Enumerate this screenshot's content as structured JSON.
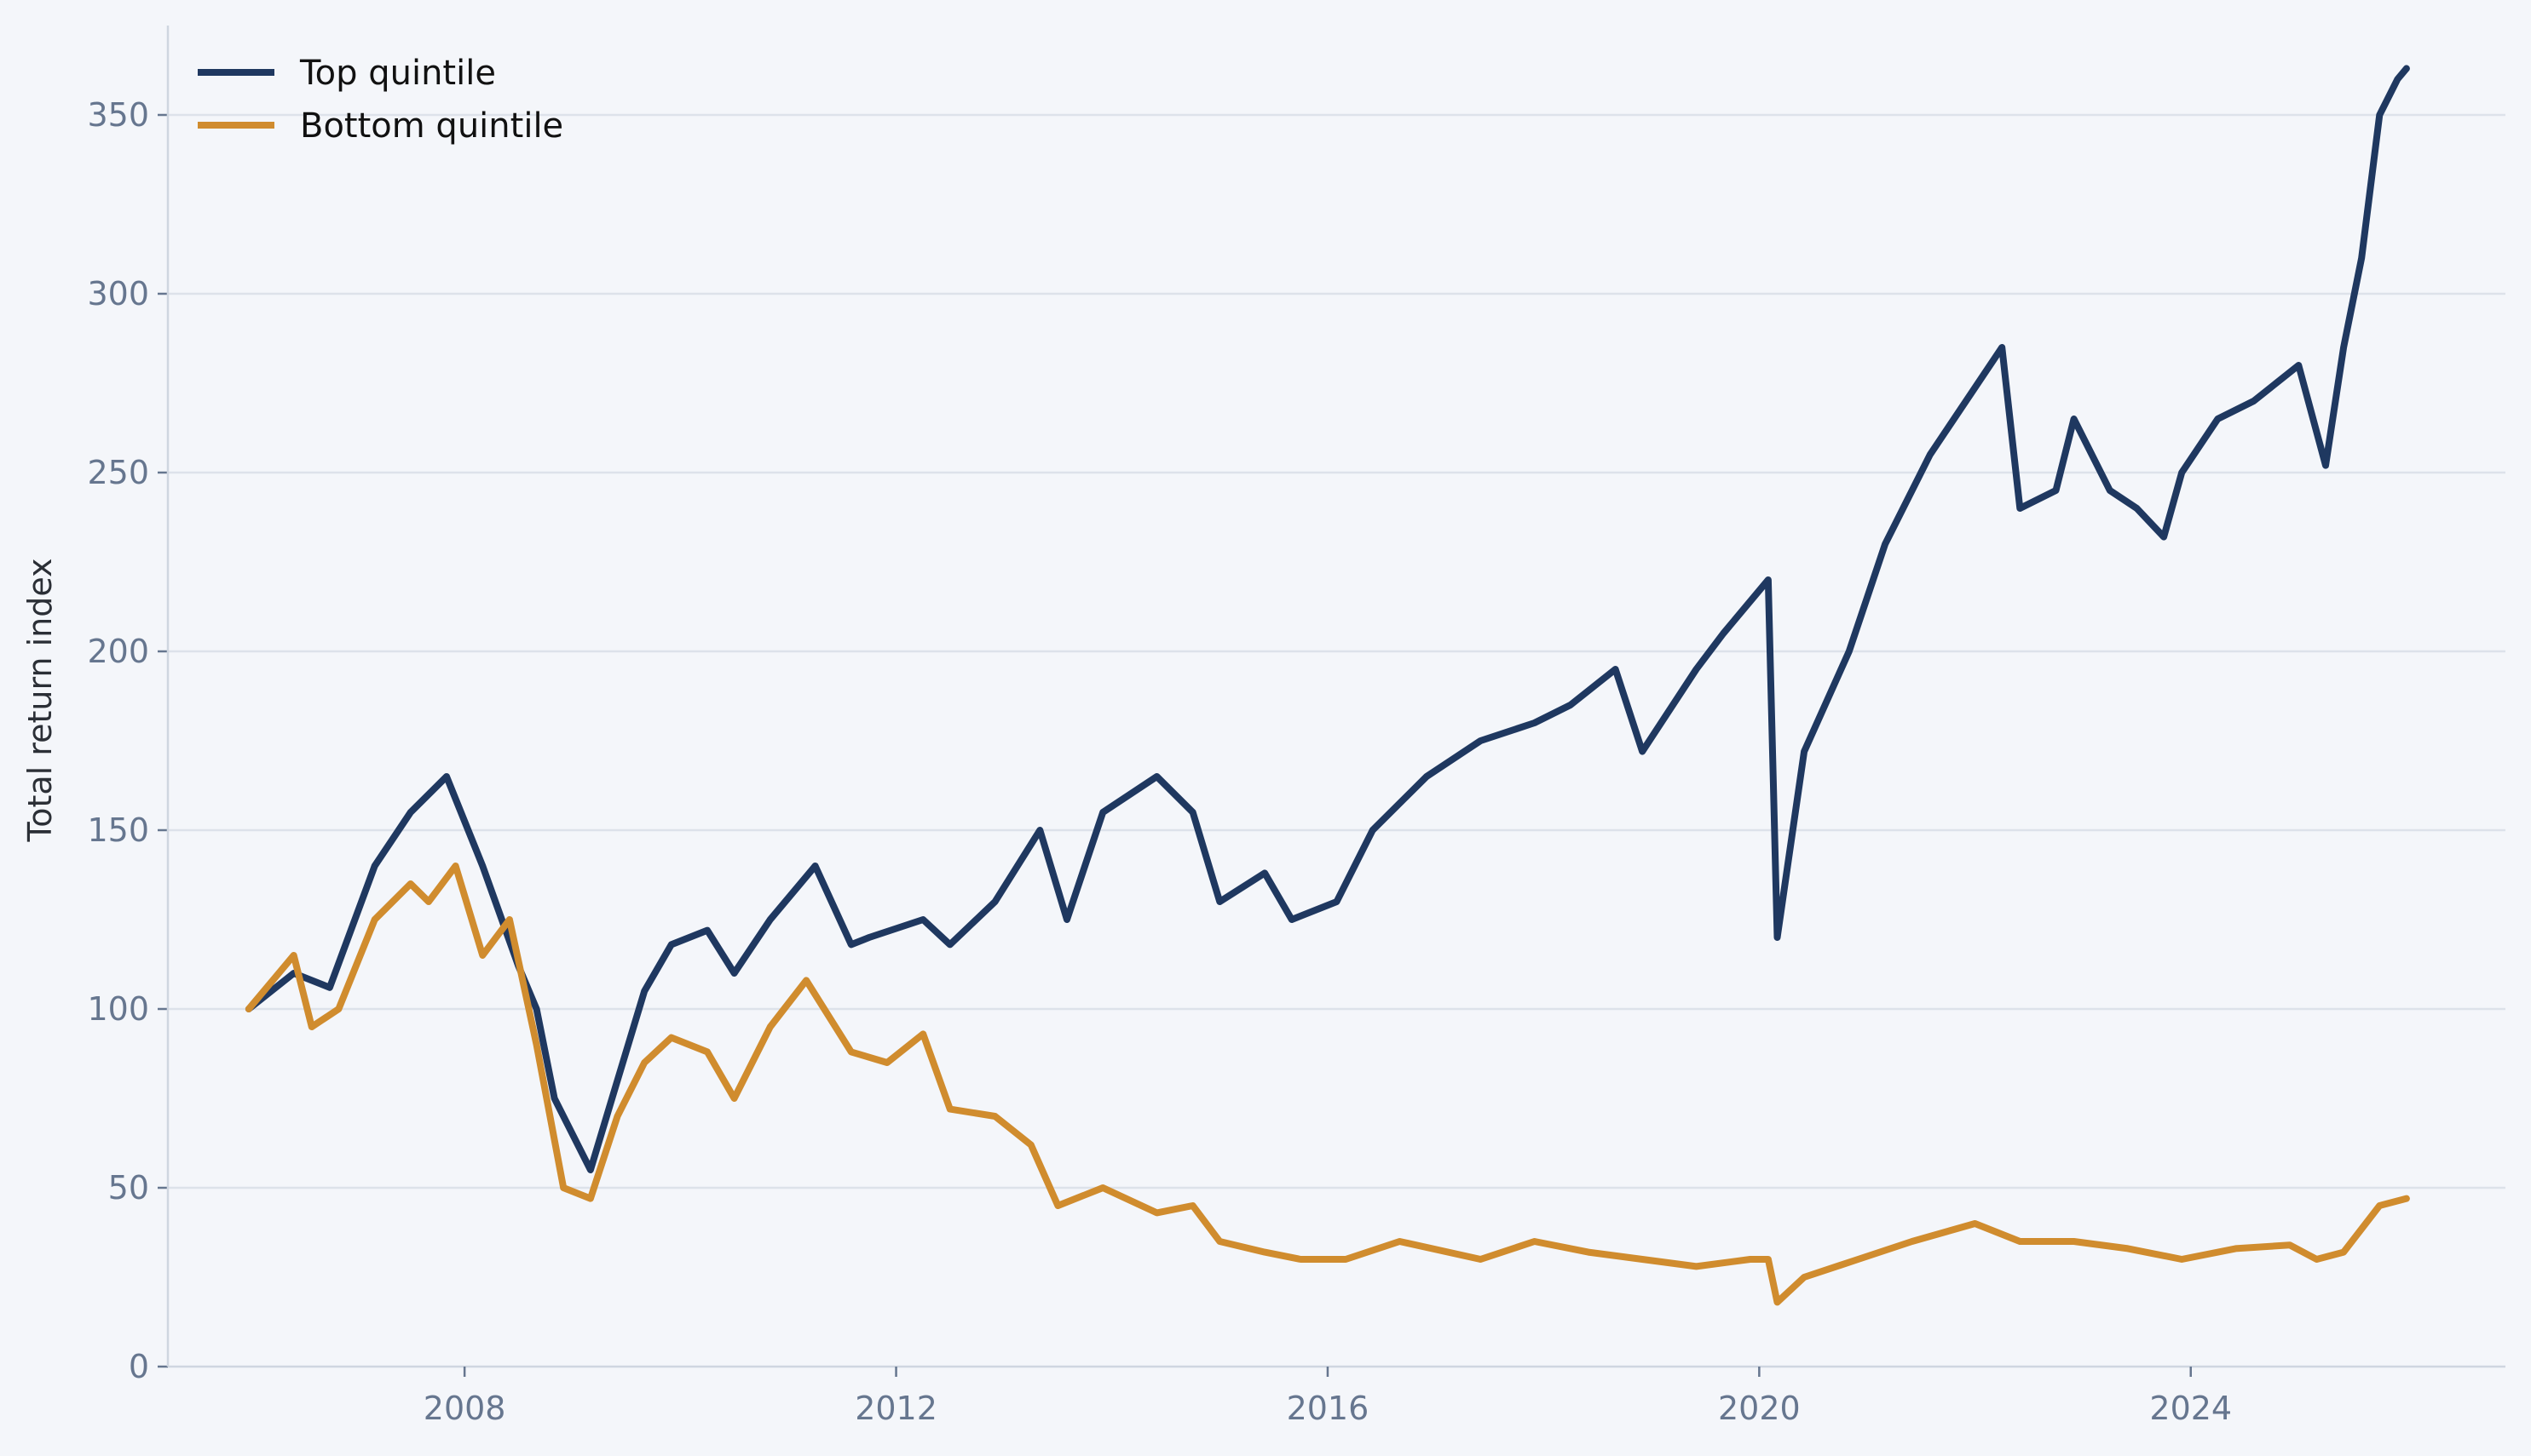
{
  "chart_data": {
    "type": "line",
    "title": "",
    "xlabel": "",
    "ylabel": "Total return index",
    "xlim": [
      "2005-04",
      "2026-12"
    ],
    "ylim": [
      0,
      375
    ],
    "x_ticks": [
      "2008",
      "2012",
      "2016",
      "2020",
      "2024"
    ],
    "y_ticks": [
      0,
      50,
      100,
      150,
      200,
      250,
      300,
      350
    ],
    "grid": "horizontal",
    "legend": {
      "position": "top-left"
    },
    "series": [
      {
        "name": "Top quintile",
        "color": "#1f3860",
        "points": [
          [
            "2006-01",
            100
          ],
          [
            "2006-06",
            110
          ],
          [
            "2006-10",
            106
          ],
          [
            "2007-03",
            140
          ],
          [
            "2007-07",
            155
          ],
          [
            "2007-11",
            165
          ],
          [
            "2008-03",
            140
          ],
          [
            "2008-07",
            112
          ],
          [
            "2008-09",
            100
          ],
          [
            "2008-11",
            75
          ],
          [
            "2009-03",
            55
          ],
          [
            "2009-06",
            80
          ],
          [
            "2009-09",
            105
          ],
          [
            "2009-12",
            118
          ],
          [
            "2010-04",
            122
          ],
          [
            "2010-07",
            110
          ],
          [
            "2010-11",
            125
          ],
          [
            "2011-04",
            140
          ],
          [
            "2011-08",
            118
          ],
          [
            "2011-10",
            120
          ],
          [
            "2012-04",
            125
          ],
          [
            "2012-07",
            118
          ],
          [
            "2012-12",
            130
          ],
          [
            "2013-05",
            150
          ],
          [
            "2013-08",
            125
          ],
          [
            "2013-12",
            155
          ],
          [
            "2014-06",
            165
          ],
          [
            "2014-10",
            155
          ],
          [
            "2015-01",
            130
          ],
          [
            "2015-06",
            138
          ],
          [
            "2015-09",
            125
          ],
          [
            "2016-02",
            130
          ],
          [
            "2016-06",
            150
          ],
          [
            "2016-12",
            165
          ],
          [
            "2017-06",
            175
          ],
          [
            "2017-12",
            180
          ],
          [
            "2018-04",
            185
          ],
          [
            "2018-09",
            195
          ],
          [
            "2018-12",
            172
          ],
          [
            "2019-06",
            195
          ],
          [
            "2019-09",
            205
          ],
          [
            "2020-02",
            220
          ],
          [
            "2020-03",
            120
          ],
          [
            "2020-06",
            172
          ],
          [
            "2020-11",
            200
          ],
          [
            "2021-03",
            230
          ],
          [
            "2021-08",
            255
          ],
          [
            "2021-12",
            270
          ],
          [
            "2022-04",
            285
          ],
          [
            "2022-06",
            240
          ],
          [
            "2022-10",
            245
          ],
          [
            "2022-12",
            265
          ],
          [
            "2023-04",
            245
          ],
          [
            "2023-07",
            240
          ],
          [
            "2023-10",
            232
          ],
          [
            "2023-12",
            250
          ],
          [
            "2024-04",
            265
          ],
          [
            "2024-08",
            270
          ],
          [
            "2025-01",
            280
          ],
          [
            "2025-04",
            252
          ],
          [
            "2025-06",
            285
          ],
          [
            "2025-08",
            310
          ],
          [
            "2025-10",
            350
          ],
          [
            "2025-12",
            360
          ],
          [
            "2026-01",
            363
          ]
        ]
      },
      {
        "name": "Bottom quintile",
        "color": "#d08c2e",
        "points": [
          [
            "2006-01",
            100
          ],
          [
            "2006-06",
            115
          ],
          [
            "2006-08",
            95
          ],
          [
            "2006-11",
            100
          ],
          [
            "2007-03",
            125
          ],
          [
            "2007-07",
            135
          ],
          [
            "2007-09",
            130
          ],
          [
            "2007-12",
            140
          ],
          [
            "2008-03",
            115
          ],
          [
            "2008-06",
            125
          ],
          [
            "2008-09",
            90
          ],
          [
            "2008-12",
            50
          ],
          [
            "2009-03",
            47
          ],
          [
            "2009-06",
            70
          ],
          [
            "2009-09",
            85
          ],
          [
            "2009-12",
            92
          ],
          [
            "2010-04",
            88
          ],
          [
            "2010-07",
            75
          ],
          [
            "2010-11",
            95
          ],
          [
            "2011-03",
            108
          ],
          [
            "2011-08",
            88
          ],
          [
            "2011-12",
            85
          ],
          [
            "2012-04",
            93
          ],
          [
            "2012-07",
            72
          ],
          [
            "2012-12",
            70
          ],
          [
            "2013-04",
            62
          ],
          [
            "2013-07",
            45
          ],
          [
            "2013-12",
            50
          ],
          [
            "2014-06",
            43
          ],
          [
            "2014-10",
            45
          ],
          [
            "2015-01",
            35
          ],
          [
            "2015-06",
            32
          ],
          [
            "2015-10",
            30
          ],
          [
            "2016-03",
            30
          ],
          [
            "2016-09",
            35
          ],
          [
            "2017-06",
            30
          ],
          [
            "2017-12",
            35
          ],
          [
            "2018-06",
            32
          ],
          [
            "2018-12",
            30
          ],
          [
            "2019-06",
            28
          ],
          [
            "2019-12",
            30
          ],
          [
            "2020-02",
            30
          ],
          [
            "2020-03",
            18
          ],
          [
            "2020-06",
            25
          ],
          [
            "2020-12",
            30
          ],
          [
            "2021-06",
            35
          ],
          [
            "2022-01",
            40
          ],
          [
            "2022-06",
            35
          ],
          [
            "2022-12",
            35
          ],
          [
            "2023-06",
            33
          ],
          [
            "2023-12",
            30
          ],
          [
            "2024-06",
            33
          ],
          [
            "2024-12",
            34
          ],
          [
            "2025-03",
            30
          ],
          [
            "2025-06",
            32
          ],
          [
            "2025-10",
            45
          ],
          [
            "2026-01",
            47
          ]
        ]
      }
    ]
  }
}
